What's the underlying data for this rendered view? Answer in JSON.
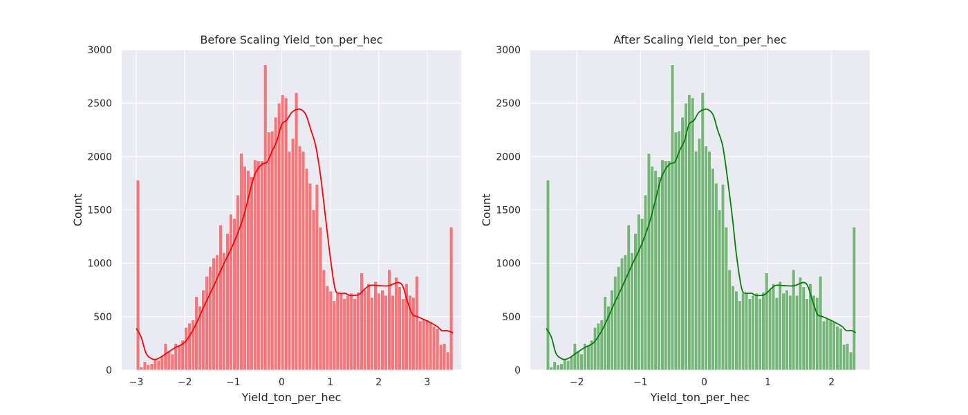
{
  "chart_data": [
    {
      "type": "histogram",
      "title": "Before Scaling Yield_ton_per_hec",
      "xlabel": "Yield_ton_per_hec",
      "ylabel": "Count",
      "xlim": [
        -3.3,
        3.7
      ],
      "ylim": [
        0,
        3000
      ],
      "x_ticks": [
        -3,
        -2,
        -1,
        0,
        1,
        2,
        3
      ],
      "x_tick_labels": [
        "−3",
        "−2",
        "−1",
        "0",
        "1",
        "2",
        "3"
      ],
      "y_ticks": [
        0,
        500,
        1000,
        1500,
        2000,
        2500,
        3000
      ],
      "y_tick_labels": [
        "0",
        "500",
        "1000",
        "1500",
        "2000",
        "2500",
        "3000"
      ],
      "grid": true,
      "background": "#eaeaf2",
      "bar_color": "#ff0000",
      "bar_alpha": 0.5,
      "kde_color": "#ff0000",
      "bins": {
        "start": -3.0,
        "end": 3.53,
        "counts": [
          1780,
          30,
          80,
          50,
          60,
          100,
          90,
          130,
          250,
          180,
          150,
          250,
          230,
          280,
          400,
          440,
          470,
          690,
          600,
          750,
          880,
          970,
          1050,
          1080,
          1360,
          1100,
          1280,
          1460,
          1420,
          1640,
          2030,
          1910,
          1870,
          1810,
          1970,
          1960,
          1960,
          2860,
          2230,
          2240,
          2370,
          2500,
          2580,
          2550,
          2050,
          2170,
          2600,
          2100,
          2050,
          1890,
          1750,
          1500,
          1740,
          1340,
          940,
          790,
          740,
          650,
          720,
          720,
          670,
          700,
          720,
          670,
          730,
          910,
          750,
          810,
          680,
          830,
          720,
          750,
          700,
          940,
          700,
          870,
          780,
          670,
          810,
          700,
          680,
          880,
          460,
          480,
          470,
          450,
          410,
          390,
          240,
          250,
          170,
          1340
        ]
      },
      "kde": {
        "x": [
          -3.0,
          -2.9,
          -2.8,
          -2.7,
          -2.6,
          -2.5,
          -2.4,
          -2.2,
          -2.0,
          -1.8,
          -1.6,
          -1.4,
          -1.2,
          -1.0,
          -0.8,
          -0.6,
          -0.5,
          -0.4,
          -0.3,
          -0.2,
          -0.1,
          0.0,
          0.1,
          0.2,
          0.3,
          0.4,
          0.5,
          0.6,
          0.7,
          0.8,
          0.9,
          1.0,
          1.1,
          1.2,
          1.3,
          1.4,
          1.5,
          1.6,
          1.8,
          2.0,
          2.2,
          2.4,
          2.5,
          2.6,
          2.7,
          2.8,
          3.0,
          3.2,
          3.3,
          3.4,
          3.53
        ],
        "y": [
          390,
          310,
          160,
          110,
          100,
          120,
          150,
          210,
          260,
          400,
          600,
          790,
          990,
          1180,
          1420,
          1770,
          1880,
          1930,
          1950,
          2050,
          2150,
          2300,
          2340,
          2410,
          2440,
          2440,
          2390,
          2250,
          2100,
          1820,
          1440,
          1060,
          760,
          720,
          720,
          700,
          700,
          710,
          790,
          790,
          790,
          820,
          780,
          630,
          520,
          500,
          460,
          410,
          370,
          370,
          350
        ]
      }
    },
    {
      "type": "histogram",
      "title": "After Scaling Yield_ton_per_hec",
      "xlabel": "Yield_ton_per_hec",
      "ylabel": "Count",
      "xlim": [
        -2.73,
        2.6
      ],
      "ylim": [
        0,
        3000
      ],
      "x_ticks": [
        -2,
        -1,
        0,
        1,
        2
      ],
      "x_tick_labels": [
        "−2",
        "−1",
        "0",
        "1",
        "2"
      ],
      "y_ticks": [
        0,
        500,
        1000,
        1500,
        2000,
        2500,
        3000
      ],
      "y_tick_labels": [
        "0",
        "500",
        "1000",
        "1500",
        "2000",
        "2500",
        "3000"
      ],
      "grid": true,
      "background": "#eaeaf2",
      "bar_color": "#008000",
      "bar_alpha": 0.5,
      "kde_color": "#008000",
      "bins": {
        "start": -2.48,
        "end": 2.38,
        "counts": [
          1780,
          30,
          80,
          50,
          60,
          100,
          90,
          130,
          250,
          180,
          150,
          250,
          230,
          280,
          400,
          440,
          470,
          690,
          600,
          750,
          880,
          970,
          1050,
          1080,
          1360,
          1100,
          1280,
          1460,
          1420,
          1640,
          2030,
          1910,
          1870,
          1810,
          1970,
          1960,
          1960,
          2860,
          2230,
          2240,
          2370,
          2500,
          2580,
          2550,
          2050,
          2170,
          2600,
          2100,
          2050,
          1890,
          1750,
          1500,
          1740,
          1340,
          940,
          790,
          740,
          650,
          720,
          720,
          670,
          700,
          720,
          670,
          730,
          910,
          750,
          810,
          680,
          830,
          720,
          750,
          700,
          940,
          700,
          870,
          780,
          670,
          810,
          700,
          680,
          880,
          460,
          480,
          470,
          450,
          410,
          390,
          240,
          250,
          170,
          1340
        ]
      },
      "kde": {
        "x": [
          -2.48,
          -2.4,
          -2.33,
          -2.25,
          -2.18,
          -2.1,
          -2.03,
          -1.88,
          -1.73,
          -1.58,
          -1.43,
          -1.28,
          -1.13,
          -0.98,
          -0.84,
          -0.69,
          -0.61,
          -0.54,
          -0.46,
          -0.39,
          -0.31,
          -0.24,
          -0.16,
          -0.09,
          -0.01,
          0.06,
          0.14,
          0.21,
          0.29,
          0.36,
          0.44,
          0.51,
          0.59,
          0.66,
          0.74,
          0.81,
          0.89,
          0.96,
          1.11,
          1.26,
          1.41,
          1.56,
          1.63,
          1.71,
          1.78,
          1.86,
          2.01,
          2.16,
          2.23,
          2.31,
          2.38
        ],
        "y": [
          390,
          310,
          160,
          110,
          100,
          120,
          150,
          210,
          260,
          400,
          600,
          790,
          990,
          1180,
          1420,
          1770,
          1880,
          1930,
          1950,
          2050,
          2150,
          2300,
          2340,
          2410,
          2440,
          2440,
          2390,
          2250,
          2100,
          1820,
          1440,
          1060,
          760,
          720,
          720,
          700,
          700,
          710,
          790,
          790,
          790,
          820,
          780,
          630,
          520,
          500,
          460,
          410,
          370,
          370,
          350
        ]
      }
    }
  ]
}
